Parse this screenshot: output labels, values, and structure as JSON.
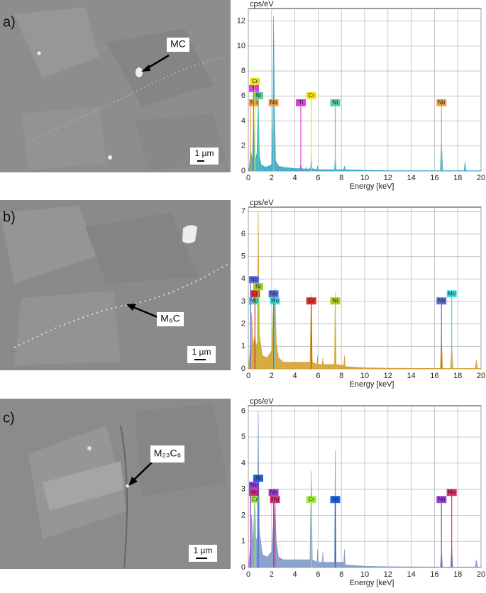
{
  "images": [
    {
      "label": "a)",
      "marker": "MC",
      "scale_bar": "1 µm"
    },
    {
      "label": "b)",
      "marker": "M₆C",
      "scale_bar": "1 µm"
    },
    {
      "label": "c)",
      "marker": "M₂₃C₆",
      "scale_bar": "1 µm"
    }
  ],
  "chart_data": [
    {
      "type": "area",
      "y_label": "cps/eV",
      "x_label": "Energy [keV]",
      "color": "#3aa7c4",
      "grid": true,
      "xlim": [
        0,
        20
      ],
      "xticks": [
        0,
        2,
        4,
        6,
        8,
        10,
        12,
        14,
        16,
        18,
        20
      ],
      "ylim": [
        0,
        13
      ],
      "yticks": [
        0,
        2,
        4,
        6,
        8,
        10,
        12
      ],
      "x": [
        0,
        0.1,
        0.18,
        0.28,
        0.36,
        0.45,
        0.52,
        0.57,
        0.63,
        0.75,
        0.85,
        0.95,
        1.1,
        1.5,
        2.0,
        2.1,
        2.17,
        2.25,
        2.35,
        2.6,
        3.0,
        4.0,
        4.45,
        4.51,
        4.58,
        4.9,
        4.95,
        5.0,
        5.35,
        5.41,
        5.48,
        5.9,
        5.95,
        6.0,
        7.4,
        7.47,
        7.55,
        8.2,
        8.26,
        8.33,
        10,
        12,
        16.5,
        16.6,
        16.7,
        18.55,
        18.62,
        18.7,
        20
      ],
      "values": [
        0,
        0.4,
        1.8,
        1.2,
        0.8,
        5.0,
        2.0,
        1.3,
        0.9,
        1.5,
        6.0,
        1.2,
        0.5,
        0.3,
        0.5,
        4.0,
        12.4,
        5.0,
        0.8,
        0.4,
        0.3,
        0.2,
        0.2,
        0.6,
        0.2,
        0.15,
        0.3,
        0.15,
        0.2,
        1.3,
        0.2,
        0.1,
        0.4,
        0.1,
        0.1,
        1.2,
        0.1,
        0.1,
        0.4,
        0.1,
        0.05,
        0.02,
        0.02,
        2.6,
        0.02,
        0.02,
        0.7,
        0.02,
        0.02
      ],
      "elements": [
        {
          "label": "Nb",
          "energy": 0.2,
          "color": "#f0a040"
        },
        {
          "label": "Ni",
          "energy": 0.85,
          "color": "#50d0a0"
        },
        {
          "label": "Ti",
          "energy": 0.45,
          "color": "#e040e0"
        },
        {
          "label": "Cr",
          "energy": 0.57,
          "color": "#f0e020"
        },
        {
          "label": "Nb",
          "energy": 2.17,
          "color": "#f0a040"
        },
        {
          "label": "Ti",
          "energy": 4.51,
          "color": "#e040e0"
        },
        {
          "label": "Cr",
          "energy": 5.41,
          "color": "#f0e020"
        },
        {
          "label": "Ni",
          "energy": 7.47,
          "color": "#50d0a0"
        },
        {
          "label": "Nb",
          "energy": 16.6,
          "color": "#f0a040"
        }
      ]
    },
    {
      "type": "area",
      "y_label": "cps/eV",
      "x_label": "Energy [keV]",
      "color": "#d4a030",
      "grid": true,
      "xlim": [
        0,
        20
      ],
      "xticks": [
        0,
        2,
        4,
        6,
        8,
        10,
        12,
        14,
        16,
        18,
        20
      ],
      "ylim": [
        0,
        7.2
      ],
      "yticks": [
        0,
        1,
        2,
        3,
        4,
        5,
        6,
        7
      ],
      "x": [
        0,
        0.1,
        0.2,
        0.28,
        0.4,
        0.57,
        0.65,
        0.78,
        0.85,
        0.95,
        1.2,
        1.6,
        2.0,
        2.17,
        2.29,
        2.4,
        2.6,
        3.0,
        5.3,
        5.41,
        5.5,
        5.9,
        5.95,
        6.0,
        6.35,
        6.4,
        6.45,
        7.4,
        7.47,
        7.55,
        8.2,
        8.26,
        8.33,
        10,
        12,
        16.5,
        16.6,
        16.7,
        17.38,
        17.48,
        17.58,
        19.5,
        19.6,
        19.7,
        20
      ],
      "values": [
        0,
        0.5,
        1.2,
        2.5,
        1.0,
        1.5,
        1.0,
        1.2,
        7.0,
        1.5,
        0.6,
        0.5,
        0.8,
        3.0,
        3.6,
        1.2,
        0.5,
        0.3,
        0.3,
        3.3,
        0.3,
        0.2,
        0.6,
        0.2,
        0.2,
        0.5,
        0.2,
        0.2,
        3.4,
        0.2,
        0.15,
        0.6,
        0.1,
        0.05,
        0.03,
        0.02,
        1.5,
        0.02,
        0.02,
        1.2,
        0.02,
        0.02,
        0.4,
        0.02,
        0.02
      ],
      "elements": [
        {
          "label": "Mo",
          "energy": 0.2,
          "color": "#40e0e0"
        },
        {
          "label": "Cr",
          "energy": 0.57,
          "color": "#e03020"
        },
        {
          "label": "Ni",
          "energy": 0.85,
          "color": "#a0d020"
        },
        {
          "label": "Nb",
          "energy": 0.2,
          "color": "#6070e0"
        },
        {
          "label": "Mo",
          "energy": 2.29,
          "color": "#40e0e0"
        },
        {
          "label": "Nb",
          "energy": 2.17,
          "color": "#6070e0"
        },
        {
          "label": "Cr",
          "energy": 5.41,
          "color": "#e03020"
        },
        {
          "label": "Ni",
          "energy": 7.47,
          "color": "#a0d020"
        },
        {
          "label": "Nb",
          "energy": 16.6,
          "color": "#6070e0"
        },
        {
          "label": "Mo",
          "energy": 17.48,
          "color": "#40e0e0"
        }
      ]
    },
    {
      "type": "area",
      "y_label": "cps/eV",
      "x_label": "Energy [keV]",
      "color": "#7f99c8",
      "grid": true,
      "xlim": [
        0,
        20
      ],
      "xticks": [
        0,
        2,
        4,
        6,
        8,
        10,
        12,
        14,
        16,
        18,
        20
      ],
      "ylim": [
        0,
        6.2
      ],
      "yticks": [
        0,
        1,
        2,
        3,
        4,
        5,
        6
      ],
      "x": [
        0,
        0.1,
        0.2,
        0.28,
        0.4,
        0.57,
        0.65,
        0.78,
        0.85,
        0.95,
        1.2,
        1.6,
        2.0,
        2.17,
        2.29,
        2.4,
        2.6,
        3.0,
        5.3,
        5.41,
        5.5,
        5.9,
        5.95,
        6.0,
        6.35,
        6.4,
        6.45,
        7.4,
        7.47,
        7.55,
        8.2,
        8.26,
        8.33,
        10,
        12,
        16.5,
        16.6,
        16.7,
        17.38,
        17.48,
        17.58,
        19.5,
        19.6,
        19.7,
        20
      ],
      "values": [
        0,
        0.4,
        1.0,
        2.0,
        0.8,
        2.8,
        1.0,
        1.2,
        6.0,
        1.4,
        0.5,
        0.4,
        0.6,
        1.8,
        2.4,
        1.0,
        0.4,
        0.3,
        0.3,
        3.7,
        0.3,
        0.2,
        0.7,
        0.2,
        0.2,
        0.6,
        0.2,
        0.2,
        4.5,
        0.2,
        0.2,
        0.7,
        0.1,
        0.05,
        0.03,
        0.02,
        0.6,
        0.02,
        0.02,
        0.8,
        0.02,
        0.02,
        0.3,
        0.02,
        0.02
      ],
      "elements": [
        {
          "label": "Cr",
          "energy": 0.57,
          "color": "#a0f040"
        },
        {
          "label": "Mo",
          "energy": 0.2,
          "color": "#e03070"
        },
        {
          "label": "Nb",
          "energy": 0.2,
          "color": "#a040e0"
        },
        {
          "label": "Ni",
          "energy": 0.85,
          "color": "#2060e0"
        },
        {
          "label": "Mo",
          "energy": 2.29,
          "color": "#e03070"
        },
        {
          "label": "Nb",
          "energy": 2.17,
          "color": "#a040e0"
        },
        {
          "label": "Cr",
          "energy": 5.41,
          "color": "#a0f040"
        },
        {
          "label": "Ni",
          "energy": 7.47,
          "color": "#2060e0"
        },
        {
          "label": "Nb",
          "energy": 16.6,
          "color": "#a040e0"
        },
        {
          "label": "Mo",
          "energy": 17.48,
          "color": "#e03070"
        }
      ]
    }
  ]
}
